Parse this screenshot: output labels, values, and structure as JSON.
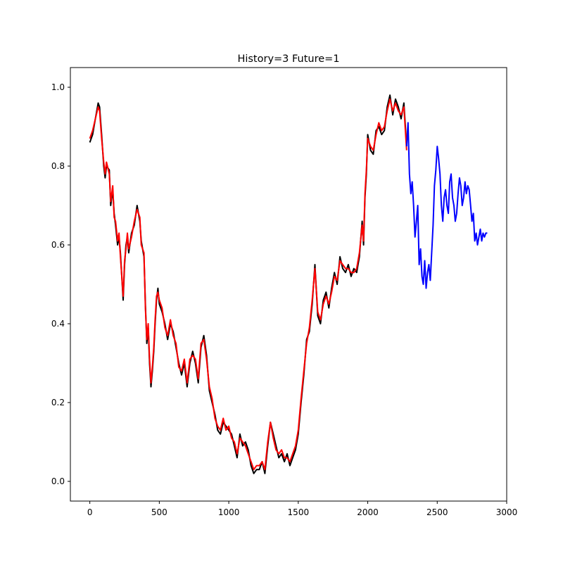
{
  "chart_data": {
    "type": "line",
    "title": "History=3 Future=1",
    "xlabel": "",
    "ylabel": "",
    "xlim": [
      -140,
      3000
    ],
    "ylim": [
      -0.05,
      1.05
    ],
    "x_ticks": [
      0,
      500,
      1000,
      1500,
      2000,
      2500,
      3000
    ],
    "x_tick_labels": [
      "0",
      "500",
      "1000",
      "1500",
      "2000",
      "2500",
      "3000"
    ],
    "y_ticks": [
      0.0,
      0.2,
      0.4,
      0.6,
      0.8,
      1.0
    ],
    "y_tick_labels": [
      "0.0",
      "0.2",
      "0.4",
      "0.6",
      "0.8",
      "1.0"
    ],
    "grid": false,
    "legend": "none",
    "series": [
      {
        "color": "#000000",
        "x": [
          0,
          20,
          40,
          60,
          70,
          85,
          100,
          110,
          120,
          140,
          150,
          165,
          175,
          185,
          200,
          210,
          220,
          240,
          250,
          260,
          270,
          280,
          300,
          320,
          340,
          360,
          370,
          390,
          400,
          410,
          420,
          430,
          440,
          450,
          460,
          470,
          480,
          490,
          500,
          520,
          540,
          560,
          580,
          600,
          620,
          640,
          660,
          680,
          700,
          720,
          740,
          760,
          780,
          800,
          820,
          840,
          860,
          880,
          900,
          920,
          940,
          960,
          980,
          1000,
          1020,
          1040,
          1060,
          1080,
          1100,
          1120,
          1140,
          1160,
          1180,
          1200,
          1220,
          1240,
          1260,
          1280,
          1300,
          1320,
          1340,
          1360,
          1380,
          1400,
          1420,
          1440,
          1460,
          1480,
          1500,
          1520,
          1540,
          1560,
          1580,
          1600,
          1620,
          1640,
          1660,
          1680,
          1700,
          1720,
          1740,
          1760,
          1780,
          1800,
          1820,
          1840,
          1860,
          1880,
          1900,
          1920,
          1940,
          1960,
          1970,
          1980,
          1990,
          2000,
          2020,
          2040,
          2060,
          2080,
          2100,
          2120,
          2140,
          2160,
          2180,
          2200,
          2220,
          2240,
          2260,
          2280
        ],
        "y": [
          0.86,
          0.88,
          0.92,
          0.96,
          0.95,
          0.88,
          0.8,
          0.77,
          0.8,
          0.79,
          0.7,
          0.74,
          0.68,
          0.65,
          0.6,
          0.62,
          0.58,
          0.46,
          0.55,
          0.6,
          0.62,
          0.58,
          0.63,
          0.65,
          0.7,
          0.66,
          0.61,
          0.57,
          0.45,
          0.35,
          0.39,
          0.3,
          0.24,
          0.28,
          0.33,
          0.4,
          0.46,
          0.49,
          0.45,
          0.43,
          0.4,
          0.36,
          0.4,
          0.38,
          0.34,
          0.3,
          0.27,
          0.3,
          0.24,
          0.3,
          0.33,
          0.3,
          0.25,
          0.34,
          0.37,
          0.32,
          0.23,
          0.2,
          0.17,
          0.13,
          0.12,
          0.15,
          0.14,
          0.13,
          0.12,
          0.09,
          0.06,
          0.12,
          0.09,
          0.1,
          0.08,
          0.04,
          0.02,
          0.03,
          0.03,
          0.05,
          0.02,
          0.09,
          0.15,
          0.12,
          0.09,
          0.06,
          0.07,
          0.05,
          0.07,
          0.04,
          0.06,
          0.08,
          0.12,
          0.2,
          0.27,
          0.36,
          0.38,
          0.45,
          0.55,
          0.42,
          0.4,
          0.46,
          0.48,
          0.44,
          0.49,
          0.53,
          0.5,
          0.57,
          0.54,
          0.53,
          0.55,
          0.52,
          0.54,
          0.53,
          0.57,
          0.66,
          0.6,
          0.72,
          0.78,
          0.88,
          0.84,
          0.83,
          0.89,
          0.9,
          0.88,
          0.89,
          0.95,
          0.98,
          0.93,
          0.97,
          0.95,
          0.92,
          0.96,
          0.85
        ]
      },
      {
        "color": "#ff0000",
        "x": [
          0,
          20,
          40,
          60,
          70,
          85,
          100,
          110,
          120,
          140,
          150,
          165,
          175,
          185,
          200,
          210,
          220,
          240,
          250,
          260,
          270,
          280,
          300,
          320,
          340,
          360,
          370,
          390,
          400,
          410,
          420,
          430,
          440,
          450,
          460,
          470,
          480,
          490,
          500,
          520,
          540,
          560,
          580,
          600,
          620,
          640,
          660,
          680,
          700,
          720,
          740,
          760,
          780,
          800,
          820,
          840,
          860,
          880,
          900,
          920,
          940,
          960,
          980,
          1000,
          1020,
          1040,
          1060,
          1080,
          1100,
          1120,
          1140,
          1160,
          1180,
          1200,
          1220,
          1240,
          1260,
          1280,
          1300,
          1320,
          1340,
          1360,
          1380,
          1400,
          1420,
          1440,
          1460,
          1480,
          1500,
          1520,
          1540,
          1560,
          1580,
          1600,
          1620,
          1640,
          1660,
          1680,
          1700,
          1720,
          1740,
          1760,
          1780,
          1800,
          1820,
          1840,
          1860,
          1880,
          1900,
          1920,
          1940,
          1960,
          1970,
          1980,
          1990,
          2000,
          2020,
          2040,
          2060,
          2080,
          2100,
          2120,
          2140,
          2160,
          2180,
          2200,
          2220,
          2240,
          2260,
          2280
        ],
        "y": [
          0.87,
          0.89,
          0.92,
          0.95,
          0.94,
          0.87,
          0.81,
          0.78,
          0.81,
          0.78,
          0.71,
          0.75,
          0.67,
          0.66,
          0.61,
          0.63,
          0.57,
          0.47,
          0.56,
          0.59,
          0.63,
          0.59,
          0.62,
          0.66,
          0.69,
          0.67,
          0.6,
          0.58,
          0.44,
          0.36,
          0.4,
          0.31,
          0.25,
          0.29,
          0.34,
          0.41,
          0.47,
          0.48,
          0.46,
          0.44,
          0.39,
          0.37,
          0.41,
          0.37,
          0.35,
          0.29,
          0.28,
          0.31,
          0.25,
          0.31,
          0.32,
          0.31,
          0.26,
          0.35,
          0.36,
          0.31,
          0.24,
          0.21,
          0.16,
          0.14,
          0.13,
          0.16,
          0.13,
          0.14,
          0.11,
          0.1,
          0.07,
          0.11,
          0.1,
          0.09,
          0.07,
          0.05,
          0.03,
          0.04,
          0.04,
          0.05,
          0.03,
          0.1,
          0.15,
          0.11,
          0.08,
          0.07,
          0.08,
          0.06,
          0.06,
          0.05,
          0.07,
          0.09,
          0.13,
          0.21,
          0.28,
          0.35,
          0.39,
          0.46,
          0.54,
          0.43,
          0.41,
          0.45,
          0.47,
          0.45,
          0.48,
          0.52,
          0.51,
          0.56,
          0.55,
          0.54,
          0.54,
          0.53,
          0.53,
          0.54,
          0.58,
          0.65,
          0.61,
          0.73,
          0.79,
          0.87,
          0.85,
          0.84,
          0.88,
          0.91,
          0.89,
          0.9,
          0.94,
          0.97,
          0.94,
          0.96,
          0.94,
          0.93,
          0.95,
          0.84
        ]
      },
      {
        "color": "#0000ff",
        "x": [
          2280,
          2290,
          2300,
          2310,
          2320,
          2330,
          2340,
          2350,
          2360,
          2370,
          2380,
          2390,
          2400,
          2410,
          2420,
          2430,
          2440,
          2450,
          2460,
          2470,
          2480,
          2490,
          2500,
          2510,
          2520,
          2530,
          2540,
          2550,
          2560,
          2570,
          2580,
          2590,
          2600,
          2610,
          2620,
          2630,
          2640,
          2650,
          2660,
          2670,
          2680,
          2690,
          2700,
          2710,
          2720,
          2730,
          2740,
          2750,
          2760,
          2770,
          2780,
          2790,
          2800,
          2810,
          2820,
          2830,
          2840,
          2850,
          2860
        ],
        "y": [
          0.85,
          0.91,
          0.78,
          0.73,
          0.76,
          0.7,
          0.62,
          0.66,
          0.7,
          0.55,
          0.59,
          0.52,
          0.5,
          0.56,
          0.49,
          0.53,
          0.55,
          0.51,
          0.58,
          0.65,
          0.75,
          0.79,
          0.85,
          0.82,
          0.78,
          0.7,
          0.66,
          0.72,
          0.74,
          0.7,
          0.68,
          0.76,
          0.78,
          0.72,
          0.7,
          0.66,
          0.68,
          0.73,
          0.77,
          0.75,
          0.7,
          0.72,
          0.76,
          0.73,
          0.75,
          0.74,
          0.7,
          0.66,
          0.68,
          0.61,
          0.63,
          0.6,
          0.62,
          0.64,
          0.61,
          0.63,
          0.62,
          0.63,
          0.63
        ]
      }
    ]
  }
}
